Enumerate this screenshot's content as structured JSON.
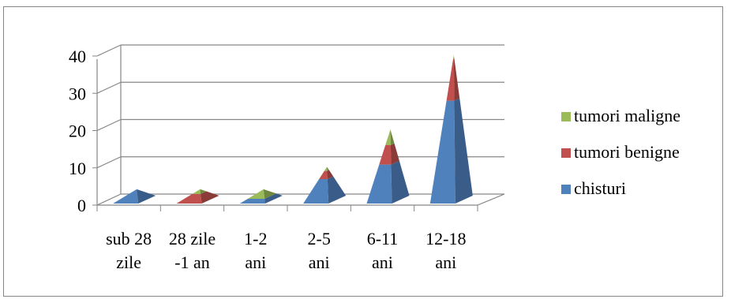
{
  "chart_data": {
    "type": "bar",
    "variant": "3d-pyramid-stacked",
    "categories": [
      [
        "sub 28",
        "zile"
      ],
      [
        "28 zile",
        "-1 an"
      ],
      [
        "1-2",
        "ani"
      ],
      [
        "2-5",
        "ani"
      ],
      [
        "6-11",
        "ani"
      ],
      [
        "12-18",
        "ani"
      ]
    ],
    "series": [
      {
        "name": "chisturi",
        "color": "#4F81BD",
        "values": [
          3,
          0,
          1,
          6,
          10,
          27
        ]
      },
      {
        "name": "tumori benigne",
        "color": "#C0504D",
        "values": [
          0,
          2,
          0,
          2,
          5,
          11
        ]
      },
      {
        "name": "tumori maligne",
        "color": "#9BBB59",
        "values": [
          0,
          1,
          2,
          1,
          4,
          1
        ]
      }
    ],
    "ylim": [
      0,
      40
    ],
    "yticks": [
      0,
      10,
      20,
      30,
      40
    ],
    "grid": true,
    "legend_position": "right"
  }
}
